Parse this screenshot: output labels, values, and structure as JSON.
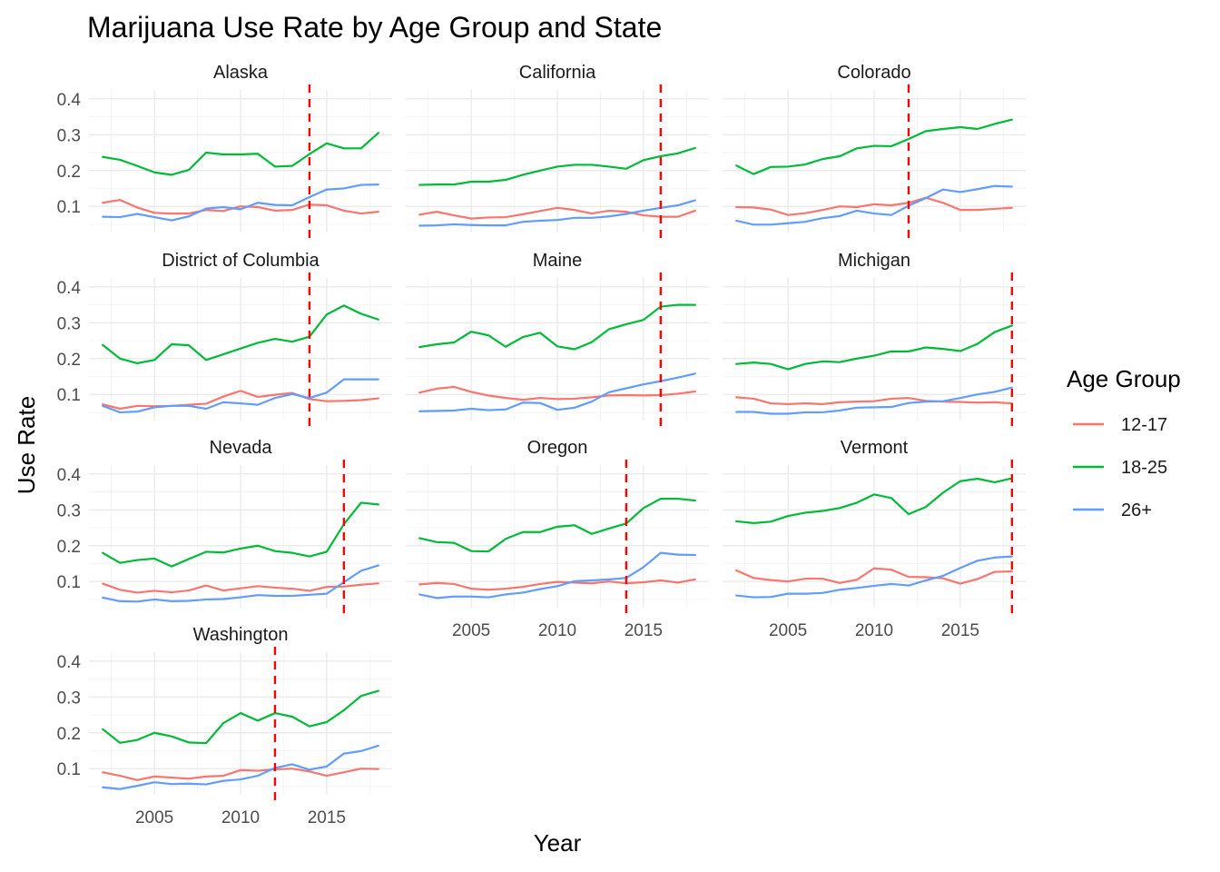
{
  "chart_data": {
    "type": "line",
    "title": "Marijuana Use Rate by Age Group and State",
    "xlabel": "Year",
    "ylabel": "Use Rate",
    "legend_title": "Age Group",
    "legend_position": "right",
    "grid": true,
    "xlim": [
      2001.2,
      2018.8
    ],
    "ylim": [
      0.027,
      0.425
    ],
    "x_ticks": [
      2005,
      2010,
      2015
    ],
    "y_ticks": [
      0.1,
      0.2,
      0.3,
      0.4
    ],
    "x": [
      2002,
      2003,
      2004,
      2005,
      2006,
      2007,
      2008,
      2009,
      2010,
      2011,
      2012,
      2013,
      2014,
      2015,
      2016,
      2017,
      2018
    ],
    "series_meta": [
      {
        "name": "12-17",
        "color": "#F8766D"
      },
      {
        "name": "18-25",
        "color": "#00BA38"
      },
      {
        "name": "26+",
        "color": "#619CFF"
      }
    ],
    "reference_line_color": "#ff0000",
    "panels": [
      {
        "state": "Alaska",
        "legalization_year": 2014,
        "series": [
          {
            "name": "12-17",
            "values": [
              0.11,
              0.118,
              0.097,
              0.082,
              0.08,
              0.08,
              0.09,
              0.087,
              0.1,
              0.098,
              0.088,
              0.09,
              0.105,
              0.103,
              0.088,
              0.08,
              0.085
            ]
          },
          {
            "name": "18-25",
            "values": [
              0.238,
              0.23,
              0.213,
              0.195,
              0.188,
              0.202,
              0.25,
              0.245,
              0.245,
              0.247,
              0.211,
              0.213,
              0.246,
              0.276,
              0.262,
              0.262,
              0.305
            ]
          },
          {
            "name": "26+",
            "values": [
              0.071,
              0.07,
              0.079,
              0.07,
              0.061,
              0.072,
              0.094,
              0.098,
              0.092,
              0.11,
              0.104,
              0.103,
              0.126,
              0.147,
              0.15,
              0.16,
              0.161
            ]
          }
        ]
      },
      {
        "state": "California",
        "legalization_year": 2016,
        "series": [
          {
            "name": "12-17",
            "values": [
              0.077,
              0.085,
              0.075,
              0.066,
              0.069,
              0.07,
              0.078,
              0.087,
              0.096,
              0.09,
              0.08,
              0.088,
              0.085,
              0.075,
              0.071,
              0.071,
              0.088
            ]
          },
          {
            "name": "18-25",
            "values": [
              0.16,
              0.161,
              0.161,
              0.169,
              0.169,
              0.174,
              0.188,
              0.2,
              0.211,
              0.216,
              0.216,
              0.211,
              0.205,
              0.229,
              0.24,
              0.248,
              0.263
            ]
          },
          {
            "name": "26+",
            "values": [
              0.046,
              0.047,
              0.05,
              0.048,
              0.047,
              0.047,
              0.057,
              0.06,
              0.062,
              0.068,
              0.068,
              0.072,
              0.079,
              0.088,
              0.096,
              0.103,
              0.117
            ]
          }
        ]
      },
      {
        "state": "Colorado",
        "legalization_year": 2012,
        "series": [
          {
            "name": "12-17",
            "values": [
              0.098,
              0.097,
              0.091,
              0.076,
              0.081,
              0.09,
              0.1,
              0.098,
              0.106,
              0.103,
              0.11,
              0.124,
              0.11,
              0.09,
              0.09,
              0.093,
              0.096
            ]
          },
          {
            "name": "18-25",
            "values": [
              0.214,
              0.19,
              0.21,
              0.211,
              0.217,
              0.232,
              0.24,
              0.262,
              0.269,
              0.268,
              0.288,
              0.31,
              0.316,
              0.321,
              0.316,
              0.33,
              0.342
            ]
          },
          {
            "name": "26+",
            "values": [
              0.06,
              0.049,
              0.049,
              0.053,
              0.057,
              0.067,
              0.073,
              0.088,
              0.08,
              0.076,
              0.102,
              0.123,
              0.147,
              0.14,
              0.148,
              0.157,
              0.155
            ]
          }
        ]
      },
      {
        "state": "District of Columbia",
        "legalization_year": 2014,
        "series": [
          {
            "name": "12-17",
            "values": [
              0.072,
              0.06,
              0.068,
              0.067,
              0.068,
              0.071,
              0.074,
              0.094,
              0.11,
              0.093,
              0.099,
              0.104,
              0.087,
              0.081,
              0.082,
              0.084,
              0.089
            ]
          },
          {
            "name": "18-25",
            "values": [
              0.238,
              0.2,
              0.187,
              0.196,
              0.24,
              0.237,
              0.196,
              0.212,
              0.228,
              0.244,
              0.255,
              0.247,
              0.261,
              0.323,
              0.348,
              0.325,
              0.309
            ]
          },
          {
            "name": "26+",
            "values": [
              0.068,
              0.05,
              0.052,
              0.064,
              0.068,
              0.068,
              0.06,
              0.078,
              0.075,
              0.071,
              0.09,
              0.101,
              0.09,
              0.105,
              0.142,
              0.142,
              0.142
            ]
          }
        ]
      },
      {
        "state": "Maine",
        "legalization_year": 2016,
        "series": [
          {
            "name": "12-17",
            "values": [
              0.105,
              0.116,
              0.121,
              0.107,
              0.097,
              0.09,
              0.085,
              0.09,
              0.087,
              0.088,
              0.092,
              0.097,
              0.098,
              0.097,
              0.098,
              0.102,
              0.108
            ]
          },
          {
            "name": "18-25",
            "values": [
              0.232,
              0.24,
              0.245,
              0.275,
              0.265,
              0.233,
              0.26,
              0.272,
              0.234,
              0.226,
              0.246,
              0.282,
              0.296,
              0.308,
              0.345,
              0.35,
              0.35
            ]
          },
          {
            "name": "26+",
            "values": [
              0.053,
              0.054,
              0.055,
              0.06,
              0.056,
              0.058,
              0.077,
              0.076,
              0.057,
              0.063,
              0.08,
              0.106,
              0.117,
              0.128,
              0.137,
              0.147,
              0.158
            ]
          }
        ]
      },
      {
        "state": "Michigan",
        "legalization_year": 2018,
        "series": [
          {
            "name": "12-17",
            "values": [
              0.092,
              0.088,
              0.075,
              0.073,
              0.075,
              0.073,
              0.078,
              0.08,
              0.081,
              0.088,
              0.09,
              0.082,
              0.08,
              0.079,
              0.077,
              0.078,
              0.075
            ]
          },
          {
            "name": "18-25",
            "values": [
              0.185,
              0.189,
              0.185,
              0.17,
              0.185,
              0.192,
              0.19,
              0.2,
              0.208,
              0.22,
              0.22,
              0.231,
              0.227,
              0.221,
              0.241,
              0.274,
              0.292
            ]
          },
          {
            "name": "26+",
            "values": [
              0.051,
              0.051,
              0.046,
              0.046,
              0.05,
              0.05,
              0.055,
              0.063,
              0.064,
              0.065,
              0.076,
              0.08,
              0.081,
              0.09,
              0.1,
              0.107,
              0.119
            ]
          }
        ]
      },
      {
        "state": "Nevada",
        "legalization_year": 2016,
        "series": [
          {
            "name": "12-17",
            "values": [
              0.094,
              0.077,
              0.069,
              0.074,
              0.07,
              0.075,
              0.089,
              0.075,
              0.081,
              0.087,
              0.083,
              0.08,
              0.074,
              0.085,
              0.086,
              0.091,
              0.095
            ]
          },
          {
            "name": "18-25",
            "values": [
              0.18,
              0.152,
              0.16,
              0.164,
              0.142,
              0.163,
              0.183,
              0.181,
              0.192,
              0.2,
              0.185,
              0.18,
              0.17,
              0.183,
              0.26,
              0.32,
              0.315
            ]
          },
          {
            "name": "26+",
            "values": [
              0.055,
              0.045,
              0.044,
              0.05,
              0.045,
              0.046,
              0.05,
              0.051,
              0.056,
              0.062,
              0.06,
              0.06,
              0.063,
              0.066,
              0.098,
              0.13,
              0.145
            ]
          }
        ]
      },
      {
        "state": "Oregon",
        "legalization_year": 2014,
        "series": [
          {
            "name": "12-17",
            "values": [
              0.092,
              0.096,
              0.093,
              0.08,
              0.077,
              0.08,
              0.085,
              0.093,
              0.099,
              0.097,
              0.095,
              0.1,
              0.095,
              0.098,
              0.103,
              0.097,
              0.106
            ]
          },
          {
            "name": "18-25",
            "values": [
              0.221,
              0.21,
              0.208,
              0.185,
              0.184,
              0.219,
              0.238,
              0.238,
              0.253,
              0.257,
              0.233,
              0.248,
              0.262,
              0.305,
              0.331,
              0.331,
              0.326
            ]
          },
          {
            "name": "26+",
            "values": [
              0.064,
              0.054,
              0.058,
              0.058,
              0.056,
              0.064,
              0.069,
              0.079,
              0.087,
              0.101,
              0.103,
              0.106,
              0.11,
              0.14,
              0.18,
              0.175,
              0.174
            ]
          }
        ]
      },
      {
        "state": "Vermont",
        "legalization_year": 2018,
        "series": [
          {
            "name": "12-17",
            "values": [
              0.131,
              0.11,
              0.104,
              0.1,
              0.108,
              0.108,
              0.096,
              0.105,
              0.137,
              0.133,
              0.113,
              0.112,
              0.109,
              0.094,
              0.107,
              0.127,
              0.128
            ]
          },
          {
            "name": "18-25",
            "values": [
              0.268,
              0.263,
              0.267,
              0.283,
              0.292,
              0.297,
              0.305,
              0.32,
              0.343,
              0.333,
              0.288,
              0.308,
              0.348,
              0.38,
              0.387,
              0.377,
              0.388
            ]
          },
          {
            "name": "26+",
            "values": [
              0.061,
              0.056,
              0.057,
              0.066,
              0.066,
              0.068,
              0.077,
              0.082,
              0.088,
              0.093,
              0.089,
              0.103,
              0.116,
              0.138,
              0.158,
              0.167,
              0.17
            ]
          }
        ]
      },
      {
        "state": "Washington",
        "legalization_year": 2012,
        "series": [
          {
            "name": "12-17",
            "values": [
              0.09,
              0.08,
              0.068,
              0.078,
              0.075,
              0.072,
              0.078,
              0.08,
              0.096,
              0.094,
              0.098,
              0.1,
              0.092,
              0.08,
              0.09,
              0.1,
              0.099
            ]
          },
          {
            "name": "18-25",
            "values": [
              0.21,
              0.172,
              0.18,
              0.2,
              0.19,
              0.173,
              0.171,
              0.227,
              0.255,
              0.234,
              0.255,
              0.245,
              0.218,
              0.23,
              0.263,
              0.303,
              0.317
            ]
          },
          {
            "name": "26+",
            "values": [
              0.048,
              0.043,
              0.052,
              0.062,
              0.057,
              0.058,
              0.056,
              0.066,
              0.07,
              0.08,
              0.102,
              0.112,
              0.097,
              0.106,
              0.142,
              0.149,
              0.164
            ]
          }
        ]
      }
    ]
  }
}
